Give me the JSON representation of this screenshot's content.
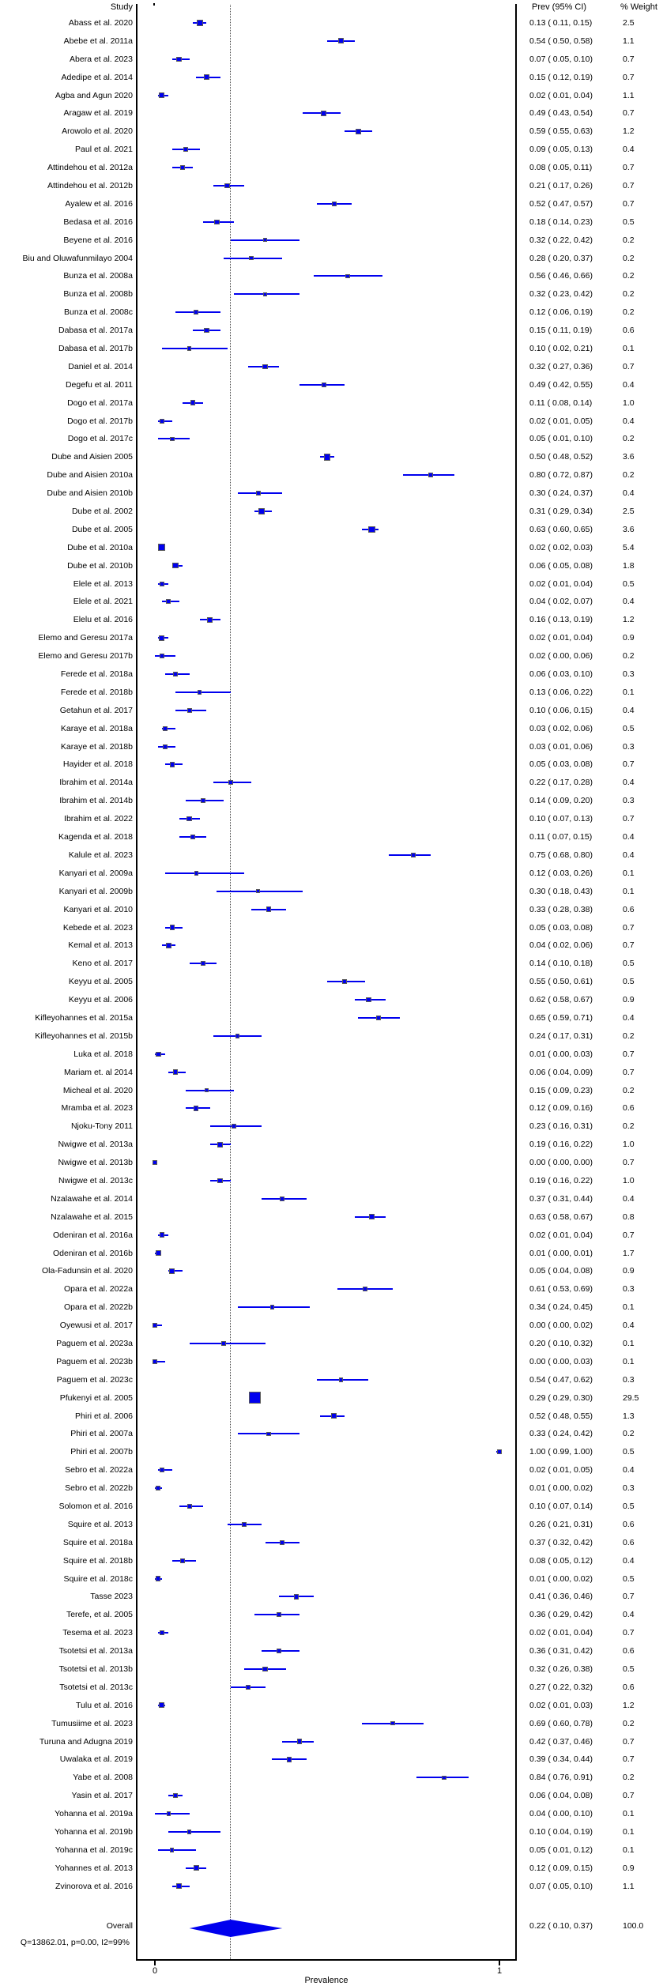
{
  "header": {
    "study": "Study",
    "prev_ci": "Prev (95% CI)",
    "weight": "% Weight"
  },
  "footer": {
    "heterogeneity": "Q=13862.01, p=0.00, I2=99%"
  },
  "chart_data": {
    "type": "forest",
    "xlabel": "Prevalence",
    "xlim": [
      0,
      1
    ],
    "xtick_labels": {
      "t0": "0",
      "t1": "1"
    },
    "marker_color": "#0000ee",
    "grid": false,
    "overall_line": 0.22,
    "study_columns": [
      "label",
      "prev",
      "ci_low",
      "ci_high",
      "weight_pct"
    ],
    "studies": [
      [
        "Abass et al. 2020",
        0.13,
        0.11,
        0.15,
        2.5
      ],
      [
        "Abebe et al. 2011a",
        0.54,
        0.5,
        0.58,
        1.1
      ],
      [
        "Abera et al. 2023",
        0.07,
        0.05,
        0.1,
        0.7
      ],
      [
        "Adedipe et al. 2014",
        0.15,
        0.12,
        0.19,
        0.7
      ],
      [
        "Agba and Agun 2020",
        0.02,
        0.01,
        0.04,
        1.1
      ],
      [
        "Aragaw et al. 2019",
        0.49,
        0.43,
        0.54,
        0.7
      ],
      [
        "Arowolo et al. 2020",
        0.59,
        0.55,
        0.63,
        1.2
      ],
      [
        "Paul et al. 2021",
        0.09,
        0.05,
        0.13,
        0.4
      ],
      [
        "Attindehou et al. 2012a",
        0.08,
        0.05,
        0.11,
        0.7
      ],
      [
        "Attindehou et al. 2012b",
        0.21,
        0.17,
        0.26,
        0.7
      ],
      [
        "Ayalew et al. 2016",
        0.52,
        0.47,
        0.57,
        0.7
      ],
      [
        "Bedasa et al. 2016",
        0.18,
        0.14,
        0.23,
        0.5
      ],
      [
        "Beyene et al. 2016",
        0.32,
        0.22,
        0.42,
        0.2
      ],
      [
        "Biu and Oluwafunmilayo 2004",
        0.28,
        0.2,
        0.37,
        0.2
      ],
      [
        "Bunza et al. 2008a",
        0.56,
        0.46,
        0.66,
        0.2
      ],
      [
        "Bunza et al. 2008b",
        0.32,
        0.23,
        0.42,
        0.2
      ],
      [
        "Bunza et al. 2008c",
        0.12,
        0.06,
        0.19,
        0.2
      ],
      [
        "Dabasa et al. 2017a",
        0.15,
        0.11,
        0.19,
        0.6
      ],
      [
        "Dabasa et al. 2017b",
        0.1,
        0.02,
        0.21,
        0.1
      ],
      [
        "Daniel et al. 2014",
        0.32,
        0.27,
        0.36,
        0.7
      ],
      [
        "Degefu et al. 2011",
        0.49,
        0.42,
        0.55,
        0.4
      ],
      [
        "Dogo et al. 2017a",
        0.11,
        0.08,
        0.14,
        1.0
      ],
      [
        "Dogo et al. 2017b",
        0.02,
        0.01,
        0.05,
        0.4
      ],
      [
        "Dogo et al. 2017c",
        0.05,
        0.01,
        0.1,
        0.2
      ],
      [
        "Dube and Aisien 2005",
        0.5,
        0.48,
        0.52,
        3.6
      ],
      [
        "Dube and Aisien 2010a",
        0.8,
        0.72,
        0.87,
        0.2
      ],
      [
        "Dube and Aisien 2010b",
        0.3,
        0.24,
        0.37,
        0.4
      ],
      [
        "Dube et al. 2002",
        0.31,
        0.29,
        0.34,
        2.5
      ],
      [
        "Dube et al. 2005",
        0.63,
        0.6,
        0.65,
        3.6
      ],
      [
        "Dube et al. 2010a",
        0.02,
        0.02,
        0.03,
        5.4
      ],
      [
        "Dube et al. 2010b",
        0.06,
        0.05,
        0.08,
        1.8
      ],
      [
        "Elele et al. 2013",
        0.02,
        0.01,
        0.04,
        0.5
      ],
      [
        "Elele et al. 2021",
        0.04,
        0.02,
        0.07,
        0.4
      ],
      [
        "Elelu et al. 2016",
        0.16,
        0.13,
        0.19,
        1.2
      ],
      [
        "Elemo and Geresu 2017a",
        0.02,
        0.01,
        0.04,
        0.9
      ],
      [
        "Elemo and Geresu 2017b",
        0.02,
        0.0,
        0.06,
        0.2
      ],
      [
        "Ferede et al. 2018a",
        0.06,
        0.03,
        0.1,
        0.3
      ],
      [
        "Ferede et al. 2018b",
        0.13,
        0.06,
        0.22,
        0.1
      ],
      [
        "Getahun et al. 2017",
        0.1,
        0.06,
        0.15,
        0.4
      ],
      [
        "Karaye et al. 2018a",
        0.03,
        0.02,
        0.06,
        0.5
      ],
      [
        "Karaye et al. 2018b",
        0.03,
        0.01,
        0.06,
        0.3
      ],
      [
        "Hayider et al. 2018",
        0.05,
        0.03,
        0.08,
        0.7
      ],
      [
        "Ibrahim et al. 2014a",
        0.22,
        0.17,
        0.28,
        0.4
      ],
      [
        "Ibrahim et al. 2014b",
        0.14,
        0.09,
        0.2,
        0.3
      ],
      [
        "Ibrahim et al. 2022",
        0.1,
        0.07,
        0.13,
        0.7
      ],
      [
        "Kagenda et al. 2018",
        0.11,
        0.07,
        0.15,
        0.4
      ],
      [
        "Kalule et al. 2023",
        0.75,
        0.68,
        0.8,
        0.4
      ],
      [
        "Kanyari et al. 2009a",
        0.12,
        0.03,
        0.26,
        0.1
      ],
      [
        "Kanyari et al. 2009b",
        0.3,
        0.18,
        0.43,
        0.1
      ],
      [
        "Kanyari et al. 2010",
        0.33,
        0.28,
        0.38,
        0.6
      ],
      [
        "Kebede et al. 2023",
        0.05,
        0.03,
        0.08,
        0.7
      ],
      [
        "Kemal et al. 2013",
        0.04,
        0.02,
        0.06,
        0.7
      ],
      [
        "Keno et al. 2017",
        0.14,
        0.1,
        0.18,
        0.5
      ],
      [
        "Keyyu et al. 2005",
        0.55,
        0.5,
        0.61,
        0.5
      ],
      [
        "Keyyu et al. 2006",
        0.62,
        0.58,
        0.67,
        0.9
      ],
      [
        "Kifleyohannes et al. 2015a",
        0.65,
        0.59,
        0.71,
        0.4
      ],
      [
        "Kifleyohannes et al. 2015b",
        0.24,
        0.17,
        0.31,
        0.2
      ],
      [
        "Luka et al. 2018",
        0.01,
        0.0,
        0.03,
        0.7
      ],
      [
        "Mariam et. al 2014",
        0.06,
        0.04,
        0.09,
        0.7
      ],
      [
        "Micheal et al. 2020",
        0.15,
        0.09,
        0.23,
        0.2
      ],
      [
        "Mramba et al. 2023",
        0.12,
        0.09,
        0.16,
        0.6
      ],
      [
        "Njoku-Tony 2011",
        0.23,
        0.16,
        0.31,
        0.2
      ],
      [
        "Nwigwe et al. 2013a",
        0.19,
        0.16,
        0.22,
        1.0
      ],
      [
        "Nwigwe et al. 2013b",
        0.0,
        0.0,
        0.0,
        0.7
      ],
      [
        "Nwigwe et al. 2013c",
        0.19,
        0.16,
        0.22,
        1.0
      ],
      [
        "Nzalawahe et al. 2014",
        0.37,
        0.31,
        0.44,
        0.4
      ],
      [
        "Nzalawahe et al. 2015",
        0.63,
        0.58,
        0.67,
        0.8
      ],
      [
        "Odeniran et al. 2016a",
        0.02,
        0.01,
        0.04,
        0.7
      ],
      [
        "Odeniran et al. 2016b",
        0.01,
        0.0,
        0.01,
        1.7
      ],
      [
        "Ola-Fadunsin et al. 2020",
        0.05,
        0.04,
        0.08,
        0.9
      ],
      [
        "Opara et al. 2022a",
        0.61,
        0.53,
        0.69,
        0.3
      ],
      [
        "Opara et al. 2022b",
        0.34,
        0.24,
        0.45,
        0.1
      ],
      [
        "Oyewusi et al. 2017",
        0.0,
        0.0,
        0.02,
        0.4
      ],
      [
        "Paguem et al. 2023a",
        0.2,
        0.1,
        0.32,
        0.1
      ],
      [
        "Paguem et al. 2023b",
        0.0,
        0.0,
        0.03,
        0.1
      ],
      [
        "Paguem et al. 2023c",
        0.54,
        0.47,
        0.62,
        0.3
      ],
      [
        "Pfukenyi et al. 2005",
        0.29,
        0.29,
        0.3,
        29.5
      ],
      [
        "Phiri et al. 2006",
        0.52,
        0.48,
        0.55,
        1.3
      ],
      [
        "Phiri et al. 2007a",
        0.33,
        0.24,
        0.42,
        0.2
      ],
      [
        "Phiri et al. 2007b",
        1.0,
        0.99,
        1.0,
        0.5
      ],
      [
        "Sebro et al. 2022a",
        0.02,
        0.01,
        0.05,
        0.4
      ],
      [
        "Sebro et al. 2022b",
        0.01,
        0.0,
        0.02,
        0.3
      ],
      [
        "Solomon et al. 2016",
        0.1,
        0.07,
        0.14,
        0.5
      ],
      [
        "Squire et al. 2013",
        0.26,
        0.21,
        0.31,
        0.6
      ],
      [
        "Squire et al. 2018a",
        0.37,
        0.32,
        0.42,
        0.6
      ],
      [
        "Squire et al. 2018b",
        0.08,
        0.05,
        0.12,
        0.4
      ],
      [
        "Squire et al. 2018c",
        0.01,
        0.0,
        0.02,
        0.5
      ],
      [
        "Tasse 2023",
        0.41,
        0.36,
        0.46,
        0.7
      ],
      [
        "Terefe, et al. 2005",
        0.36,
        0.29,
        0.42,
        0.4
      ],
      [
        "Tesema et al. 2023",
        0.02,
        0.01,
        0.04,
        0.7
      ],
      [
        "Tsotetsi et al. 2013a",
        0.36,
        0.31,
        0.42,
        0.6
      ],
      [
        "Tsotetsi et al. 2013b",
        0.32,
        0.26,
        0.38,
        0.5
      ],
      [
        "Tsotetsi et al. 2013c",
        0.27,
        0.22,
        0.32,
        0.6
      ],
      [
        "Tulu et al. 2016",
        0.02,
        0.01,
        0.03,
        1.2
      ],
      [
        "Tumusiime et al. 2023",
        0.69,
        0.6,
        0.78,
        0.2
      ],
      [
        "Turuna and Adugna 2019",
        0.42,
        0.37,
        0.46,
        0.7
      ],
      [
        "Uwalaka et al. 2019",
        0.39,
        0.34,
        0.44,
        0.7
      ],
      [
        "Yabe et al. 2008",
        0.84,
        0.76,
        0.91,
        0.2
      ],
      [
        "Yasin et al. 2017",
        0.06,
        0.04,
        0.08,
        0.7
      ],
      [
        "Yohanna et al. 2019a",
        0.04,
        0.0,
        0.1,
        0.1
      ],
      [
        "Yohanna et al. 2019b",
        0.1,
        0.04,
        0.19,
        0.1
      ],
      [
        "Yohanna et al. 2019c",
        0.05,
        0.01,
        0.12,
        0.1
      ],
      [
        "Yohannes et al. 2013",
        0.12,
        0.09,
        0.15,
        0.9
      ],
      [
        "Zvinorova et al. 2016",
        0.07,
        0.05,
        0.1,
        1.1
      ]
    ],
    "overall": {
      "label": "Overall",
      "prev": 0.22,
      "ci_low": 0.1,
      "ci_high": 0.37,
      "weight_pct": 100.0
    }
  }
}
